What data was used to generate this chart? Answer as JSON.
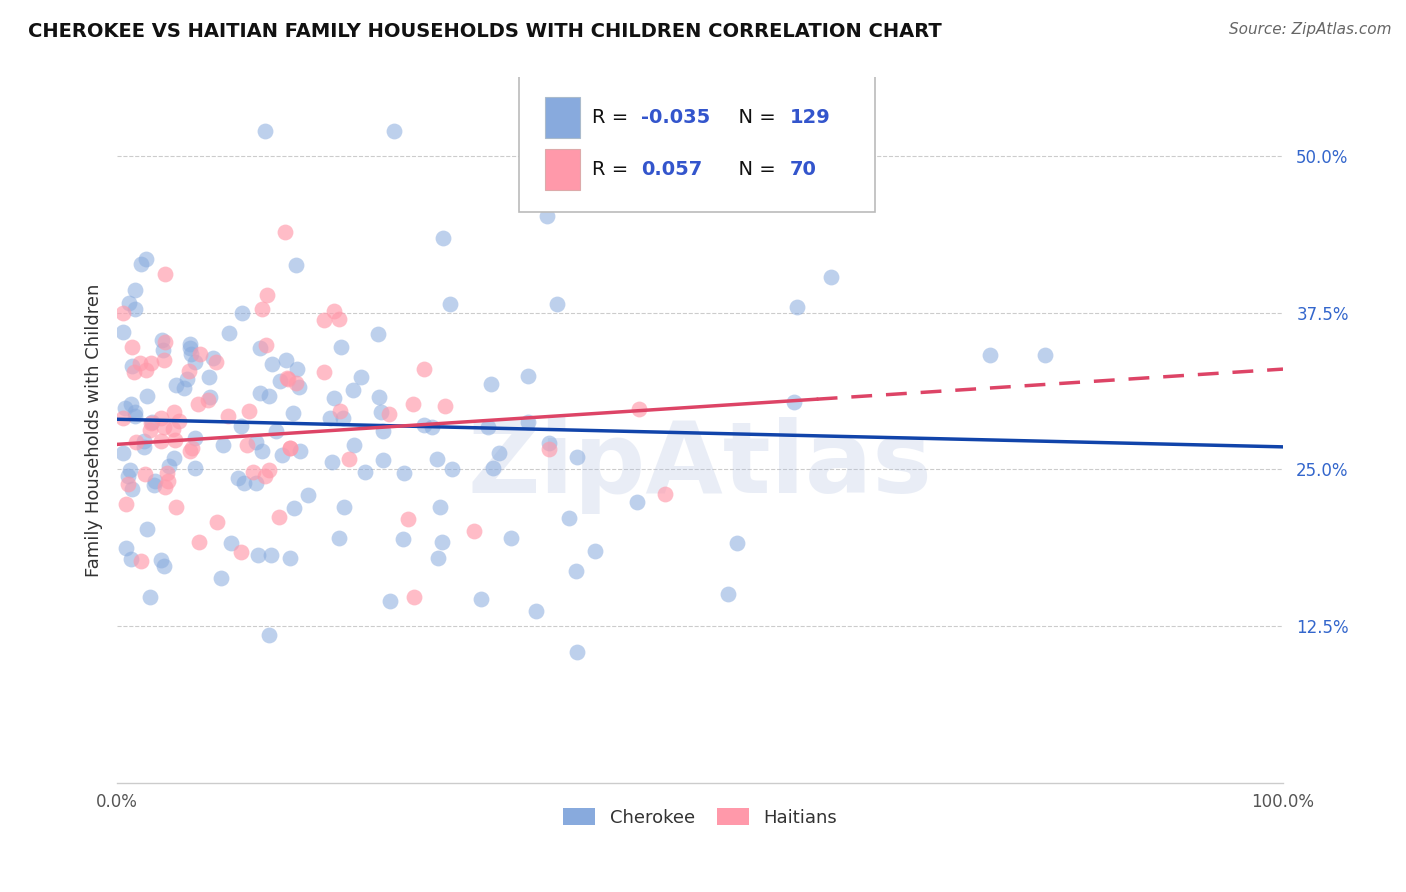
{
  "title": "CHEROKEE VS HAITIAN FAMILY HOUSEHOLDS WITH CHILDREN CORRELATION CHART",
  "source": "Source: ZipAtlas.com",
  "ylabel": "Family Households with Children",
  "xlim": [
    0.0,
    1.0
  ],
  "ylim": [
    0.0,
    0.5625
  ],
  "xticks": [
    0.0,
    0.25,
    0.5,
    0.75,
    1.0
  ],
  "xtick_labels": [
    "0.0%",
    "",
    "",
    "",
    "100.0%"
  ],
  "yticks": [
    0.0,
    0.125,
    0.25,
    0.375,
    0.5
  ],
  "ytick_labels": [
    "",
    "12.5%",
    "25.0%",
    "37.5%",
    "50.0%"
  ],
  "cherokee_R": -0.035,
  "cherokee_N": 129,
  "haitian_R": 0.057,
  "haitian_N": 70,
  "blue_color": "#88AADD",
  "pink_color": "#FF99AA",
  "blue_line_color": "#1144AA",
  "pink_line_color": "#DD4466",
  "grid_color": "#CCCCCC",
  "background_color": "#FFFFFF",
  "watermark": "ZipAtlas",
  "watermark_color": "#AABBDD"
}
